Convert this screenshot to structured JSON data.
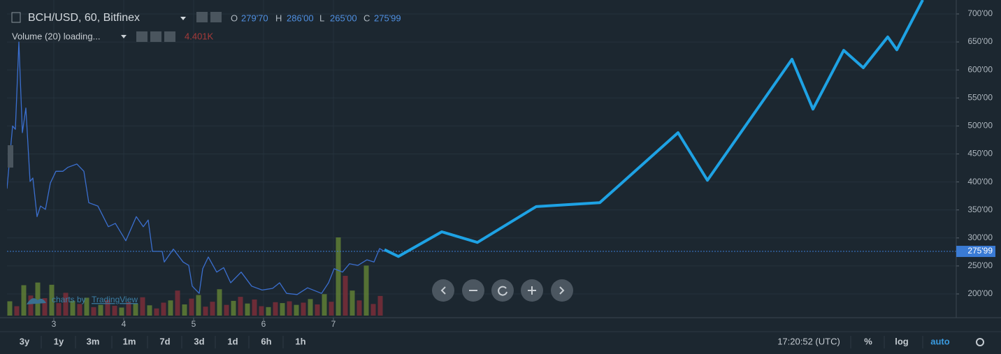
{
  "header": {
    "symbol": "BCH/USD, 60, Bitfinex",
    "ohlc": [
      {
        "key": "O",
        "value": "279'70"
      },
      {
        "key": "H",
        "value": "286'00"
      },
      {
        "key": "L",
        "value": "265'00"
      },
      {
        "key": "C",
        "value": "275'99"
      }
    ],
    "volume_label": "Volume (20) loading...",
    "volume_value": "4.401K"
  },
  "chart_data": {
    "type": "line",
    "xlim": [
      2.33,
      15.91
    ],
    "ylim": [
      157.6,
      724.9
    ],
    "xticks": [
      3,
      4,
      5,
      6,
      7
    ],
    "yticks": [
      {
        "value": 200,
        "label": "200'00"
      },
      {
        "value": 250,
        "label": "250'00"
      },
      {
        "value": 300,
        "label": "300'00"
      },
      {
        "value": 350,
        "label": "350'00"
      },
      {
        "value": 400,
        "label": "400'00"
      },
      {
        "value": 450,
        "label": "450'00"
      },
      {
        "value": 500,
        "label": "500'00"
      },
      {
        "value": 550,
        "label": "550'00"
      },
      {
        "value": 600,
        "label": "600'00"
      },
      {
        "value": 650,
        "label": "650'00"
      },
      {
        "value": 700,
        "label": "700'00"
      }
    ],
    "grid": true,
    "x": [
      2.33,
      2.41,
      2.45,
      2.5,
      2.55,
      2.6,
      2.66,
      2.7,
      2.76,
      2.81,
      2.88,
      2.95,
      3.03,
      3.13,
      3.2,
      3.33,
      3.43,
      3.5,
      3.63,
      3.78,
      3.88,
      4.03,
      4.18,
      4.28,
      4.35,
      4.41,
      4.55,
      4.58,
      4.71,
      4.85,
      4.93,
      4.98,
      5.08,
      5.13,
      5.21,
      5.33,
      5.43,
      5.53,
      5.68,
      5.83,
      5.98,
      6.13,
      6.23,
      6.33,
      6.48,
      6.63,
      6.83,
      6.93,
      7.01,
      7.13,
      7.23,
      7.35,
      7.48,
      7.58,
      7.66,
      7.73
    ],
    "series": [
      {
        "color": "#3b6fcf",
        "values": [
          388,
          500,
          494,
          650,
          488,
          532,
          401,
          407,
          338,
          357,
          351,
          398,
          419,
          419,
          426,
          432,
          419,
          363,
          357,
          320,
          326,
          295,
          338,
          320,
          332,
          276,
          276,
          257,
          280,
          257,
          251,
          214,
          201,
          245,
          266,
          239,
          247,
          220,
          239,
          214,
          207,
          210,
          220,
          201,
          199,
          211,
          201,
          220,
          245,
          239,
          254,
          251,
          261,
          257,
          281,
          276
        ]
      }
    ],
    "current_price": {
      "value": 275.99,
      "label": "275'99",
      "color": "#3a7bd5"
    },
    "drawing": {
      "color": "#1ea2e4",
      "x": [
        7.73,
        7.93,
        8.55,
        9.06,
        9.9,
        10.81,
        11.93,
        12.35,
        13.56,
        13.86,
        14.3,
        14.58,
        14.93,
        15.06,
        15.43
      ],
      "values": [
        279,
        267,
        311,
        292,
        356,
        363,
        488,
        403,
        619,
        530,
        635,
        604,
        659,
        636,
        725
      ]
    },
    "volume": {
      "ylim": [
        0,
        25
      ],
      "up_color": "#5f7f35",
      "down_color": "#7a2e38",
      "x": [
        2.37,
        2.47,
        2.57,
        2.67,
        2.77,
        2.87,
        2.97,
        3.07,
        3.17,
        3.27,
        3.37,
        3.47,
        3.57,
        3.67,
        3.77,
        3.87,
        3.97,
        4.07,
        4.17,
        4.27,
        4.37,
        4.47,
        4.57,
        4.67,
        4.77,
        4.87,
        4.97,
        5.07,
        5.17,
        5.27,
        5.37,
        5.47,
        5.57,
        5.67,
        5.77,
        5.87,
        5.97,
        6.07,
        6.17,
        6.27,
        6.37,
        6.47,
        6.57,
        6.67,
        6.77,
        6.87,
        6.97,
        7.07,
        7.17,
        7.27,
        7.37,
        7.47,
        7.57,
        7.67
      ],
      "values": [
        3.2,
        2.1,
        6.8,
        4.5,
        7.4,
        3.9,
        6.9,
        2.8,
        5.1,
        3.3,
        2.6,
        4.0,
        1.9,
        2.4,
        3.5,
        2.2,
        1.8,
        3.0,
        2.7,
        4.1,
        2.3,
        1.6,
        2.9,
        3.4,
        5.6,
        2.5,
        3.8,
        4.6,
        2.0,
        3.1,
        5.9,
        2.4,
        3.3,
        4.2,
        2.7,
        3.6,
        2.1,
        1.9,
        3.0,
        2.8,
        3.2,
        2.4,
        2.9,
        3.7,
        2.5,
        4.8,
        3.1,
        17.5,
        8.9,
        5.6,
        3.4,
        11.2,
        2.6,
        4.401
      ],
      "up": [
        true,
        false,
        true,
        false,
        true,
        false,
        true,
        false,
        false,
        true,
        false,
        true,
        false,
        true,
        false,
        false,
        true,
        false,
        true,
        false,
        true,
        false,
        false,
        true,
        false,
        true,
        false,
        true,
        false,
        false,
        true,
        false,
        true,
        false,
        true,
        false,
        false,
        true,
        false,
        true,
        false,
        true,
        false,
        true,
        false,
        true,
        false,
        true,
        false,
        true,
        false,
        true,
        false,
        false
      ]
    }
  },
  "watermark": {
    "prefix": "charts by",
    "brand": "TradingView"
  },
  "toolbar": {
    "ranges": [
      "3y",
      "1y",
      "3m",
      "1m",
      "7d",
      "3d",
      "1d",
      "6h",
      "1h"
    ],
    "time": "17:20:52 (UTC)",
    "options": [
      "%",
      "log",
      "auto"
    ]
  }
}
